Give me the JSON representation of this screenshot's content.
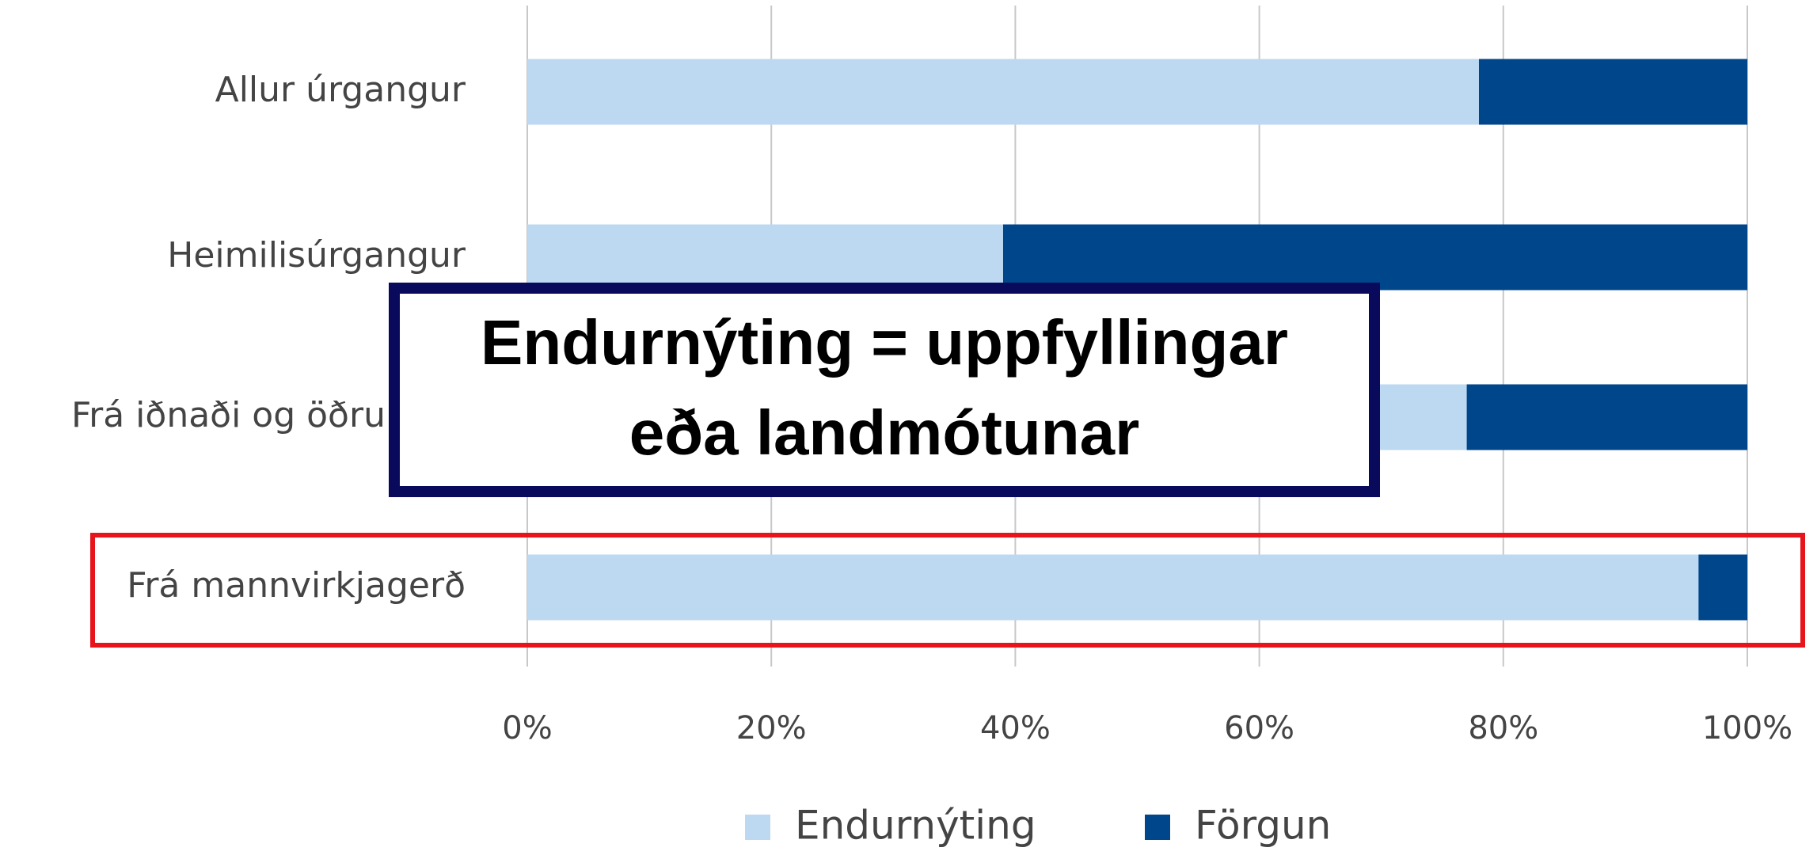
{
  "chart_data": {
    "type": "stacked_bar_horizontal",
    "categories": [
      "Allur úrgangur",
      "Heimilisúrgangur",
      "Frá iðnaði og öðrum re",
      "Frá mannvirkjagerð"
    ],
    "series": [
      {
        "name": "Endurnýting",
        "color": "#bdd9f2",
        "values": [
          78,
          39,
          77,
          96
        ]
      },
      {
        "name": "Förgun",
        "color": "#00468b",
        "values": [
          22,
          61,
          23,
          4
        ]
      }
    ],
    "xlim": [
      0,
      100
    ],
    "xticks": [
      {
        "value": 0,
        "label": "0%"
      },
      {
        "value": 20,
        "label": "20%"
      },
      {
        "value": 40,
        "label": "40%"
      },
      {
        "value": 60,
        "label": "60%"
      },
      {
        "value": 80,
        "label": "80%"
      },
      {
        "value": 100,
        "label": "100%"
      }
    ],
    "grid": true,
    "legend": "bottom",
    "annotation": [
      "Endurnýting = uppfyllingar",
      "eða landmótunar"
    ]
  }
}
